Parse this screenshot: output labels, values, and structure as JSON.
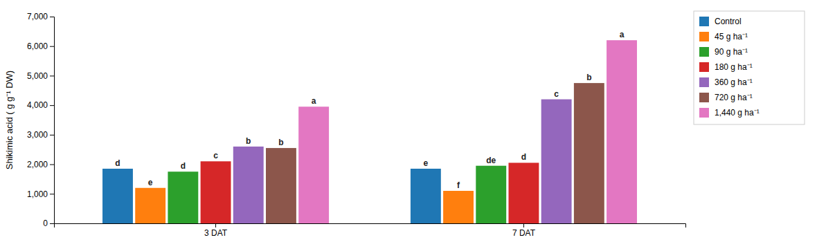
{
  "chart_data": {
    "type": "bar",
    "categories": [
      "3 DAT",
      "7 DAT"
    ],
    "series": [
      {
        "name": "Control",
        "values": [
          1850,
          1850
        ],
        "labels": [
          "d",
          "e"
        ]
      },
      {
        "name": "45 g ha⁻¹",
        "values": [
          1200,
          1100
        ],
        "labels": [
          "e",
          "f"
        ]
      },
      {
        "name": "90 g ha⁻¹",
        "values": [
          1750,
          1950
        ],
        "labels": [
          "d",
          "de"
        ]
      },
      {
        "name": "180 g ha⁻¹",
        "values": [
          2100,
          2050
        ],
        "labels": [
          "c",
          "d"
        ]
      },
      {
        "name": "360 g ha⁻¹",
        "values": [
          2600,
          4200
        ],
        "labels": [
          "b",
          "c"
        ]
      },
      {
        "name": "720 g ha⁻¹",
        "values": [
          2550,
          4750
        ],
        "labels": [
          "b",
          "b"
        ]
      },
      {
        "name": "1,440 g ha⁻¹",
        "values": [
          3950,
          6200
        ],
        "labels": [
          "a",
          "a"
        ]
      }
    ],
    "ylabel": "Shikimic acid ( g g⁻¹ DW)",
    "ylim": [
      0,
      7000
    ],
    "yticks": [
      0,
      {
        "value": 1000,
        "label": "1,000"
      },
      {
        "value": 2000,
        "label": "2,000"
      },
      {
        "value": 3000,
        "label": "3,000"
      },
      {
        "value": 4000,
        "label": "4,000"
      },
      {
        "value": 5000,
        "label": "5,000"
      },
      {
        "value": 6000,
        "label": "6,000"
      },
      {
        "value": 7000,
        "label": "7,000"
      }
    ],
    "grid": false,
    "legend": "right"
  }
}
